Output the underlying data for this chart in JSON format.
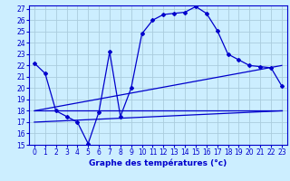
{
  "title": "Graphe des températures (°c)",
  "background_color": "#cceeff",
  "grid_color": "#aaccdd",
  "line_color": "#0000cc",
  "xlim": [
    -0.5,
    23.5
  ],
  "ylim": [
    15,
    27.3
  ],
  "xticks": [
    0,
    1,
    2,
    3,
    4,
    5,
    6,
    7,
    8,
    9,
    10,
    11,
    12,
    13,
    14,
    15,
    16,
    17,
    18,
    19,
    20,
    21,
    22,
    23
  ],
  "yticks": [
    15,
    16,
    17,
    18,
    19,
    20,
    21,
    22,
    23,
    24,
    25,
    26,
    27
  ],
  "curve1_x": [
    0,
    1,
    2,
    3,
    4,
    5,
    6,
    7,
    8,
    9,
    10,
    11,
    12,
    13,
    14,
    15,
    16,
    17,
    18,
    19,
    20,
    21,
    22,
    23
  ],
  "curve1_y": [
    22.2,
    21.3,
    18.0,
    17.5,
    17.0,
    15.1,
    17.9,
    23.2,
    17.5,
    20.0,
    24.8,
    26.0,
    26.5,
    26.6,
    26.7,
    27.2,
    26.6,
    25.1,
    23.0,
    22.5,
    22.0,
    21.9,
    21.8,
    20.2
  ],
  "curve2_x": [
    0,
    23
  ],
  "curve2_y": [
    18.0,
    18.0
  ],
  "curve3_x": [
    0,
    23
  ],
  "curve3_y": [
    17.0,
    18.0
  ],
  "curve4_x": [
    0,
    23
  ],
  "curve4_y": [
    18.0,
    22.0
  ],
  "tick_fontsize": 5.5,
  "xlabel_fontsize": 6.5
}
